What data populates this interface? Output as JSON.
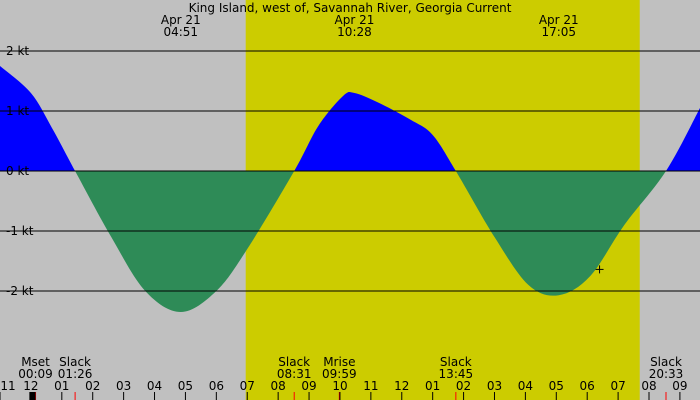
{
  "chart_data": {
    "type": "area",
    "title": "King Island, west of, Savannah River, Georgia Current",
    "unit": "kt",
    "ylim": [
      -2.55,
      2.1
    ],
    "y_ticks": [
      {
        "value": 2,
        "label": "2 kt"
      },
      {
        "value": 1,
        "label": "1 kt"
      },
      {
        "value": 0,
        "label": "0 kt"
      },
      {
        "value": -1,
        "label": "-1 kt"
      },
      {
        "value": -2,
        "label": "-2 kt"
      }
    ],
    "xlim_hours": [
      11.0,
      33.65
    ],
    "x_tick_labels": [
      "11",
      "12",
      "01",
      "02",
      "03",
      "04",
      "05",
      "06",
      "07",
      "08",
      "09",
      "10",
      "11",
      "12",
      "01",
      "02",
      "03",
      "04",
      "05",
      "06",
      "07",
      "08",
      "09"
    ],
    "daylight_hours": [
      18.95,
      31.7
    ],
    "series": [
      {
        "values": [
          {
            "x": 11.0,
            "y": 1.75
          },
          {
            "x": 12.0,
            "y": 1.3
          },
          {
            "x": 12.7,
            "y": 0.7
          },
          {
            "x": 13.43,
            "y": 0.0
          },
          {
            "x": 14.6,
            "y": -1.1
          },
          {
            "x": 15.7,
            "y": -2.0
          },
          {
            "x": 16.85,
            "y": -2.35
          },
          {
            "x": 18.0,
            "y": -2.0
          },
          {
            "x": 19.0,
            "y": -1.3
          },
          {
            "x": 20.52,
            "y": 0.0
          },
          {
            "x": 21.3,
            "y": 0.75
          },
          {
            "x": 22.1,
            "y": 1.25
          },
          {
            "x": 22.47,
            "y": 1.3
          },
          {
            "x": 23.2,
            "y": 1.15
          },
          {
            "x": 24.3,
            "y": 0.85
          },
          {
            "x": 25.0,
            "y": 0.6
          },
          {
            "x": 25.75,
            "y": 0.0
          },
          {
            "x": 27.0,
            "y": -1.1
          },
          {
            "x": 28.1,
            "y": -1.9
          },
          {
            "x": 29.08,
            "y": -2.07
          },
          {
            "x": 30.1,
            "y": -1.75
          },
          {
            "x": 31.2,
            "y": -0.9
          },
          {
            "x": 32.55,
            "y": 0.0
          },
          {
            "x": 33.65,
            "y": 1.05
          }
        ]
      }
    ],
    "colors": {
      "flood": "#0000ff",
      "ebb": "#2e8b57",
      "daylight": "#cccc00",
      "night": "#c0c0c0",
      "grid": "#000000",
      "event_tick": "#ff0000"
    },
    "top_annotations": [
      {
        "x": 16.85,
        "date": "Apr 21",
        "time": "04:51"
      },
      {
        "x": 22.47,
        "date": "Apr 21",
        "time": "10:28"
      },
      {
        "x": 29.08,
        "date": "Apr 21",
        "time": "17:05"
      }
    ],
    "bottom_annotations": [
      {
        "x": 12.15,
        "label": "Mset",
        "time": "00:09"
      },
      {
        "x": 13.43,
        "label": "Slack",
        "time": "01:26"
      },
      {
        "x": 20.52,
        "label": "Slack",
        "time": "08:31"
      },
      {
        "x": 21.98,
        "label": "Mrise",
        "time": "09:59"
      },
      {
        "x": 25.75,
        "label": "Slack",
        "time": "13:45"
      },
      {
        "x": 32.55,
        "label": "Slack",
        "time": "20:33"
      }
    ],
    "moon_marker_range": [
      11.95,
      12.15
    ],
    "crosshair": {
      "x": 30.4,
      "y": -1.64
    }
  }
}
